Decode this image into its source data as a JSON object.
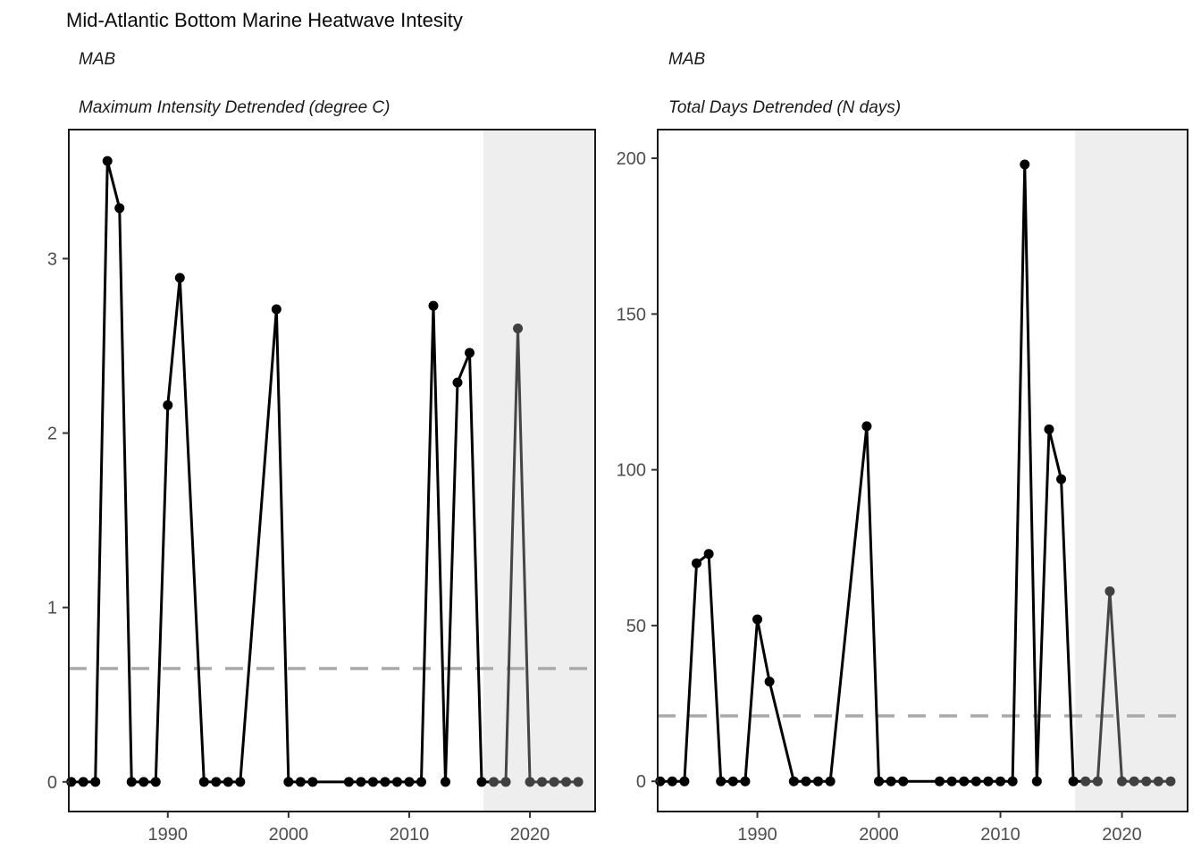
{
  "title": "Mid-Atlantic Bottom Marine Heatwave Intesity",
  "style": {
    "background": "#ffffff",
    "point_color": "#000000",
    "recent_point_color": "#404040",
    "line_color": "#000000",
    "recent_line_color": "#454545",
    "shade_color": "#eeeeee",
    "threshold_color": "#a9a9a9",
    "panel_border_color": "#1a1a1a",
    "tick_color": "#333333",
    "tick_label_color": "#4d4d4d",
    "title_color": "#0a0a0a"
  },
  "chart_data": [
    {
      "type": "line",
      "facet_label": "MAB",
      "title": "Maximum Intensity Detrended (degree C)",
      "xlabel": "",
      "ylabel": "degree C",
      "x": [
        1982,
        1983,
        1984,
        1985,
        1986,
        1987,
        1988,
        1989,
        1990,
        1991,
        1993,
        1994,
        1995,
        1996,
        1999,
        2000,
        2001,
        2002,
        2005,
        2006,
        2007,
        2008,
        2009,
        2010,
        2011,
        2012,
        2013,
        2014,
        2015,
        2016,
        2017,
        2018,
        2019,
        2020,
        2021,
        2022,
        2023,
        2024
      ],
      "values": [
        0,
        0,
        0,
        3.56,
        3.29,
        0,
        0,
        0,
        2.16,
        2.89,
        0,
        0,
        0,
        0,
        2.71,
        0,
        0,
        0,
        0,
        0,
        0,
        0,
        0,
        0,
        0,
        2.73,
        0,
        2.29,
        2.46,
        0,
        0,
        0,
        2.6,
        0,
        0,
        0,
        0,
        0
      ],
      "xlim": [
        1981.8,
        2025.4
      ],
      "ylim": [
        -0.17,
        3.74
      ],
      "xticks": [
        1990,
        2000,
        2010,
        2020
      ],
      "yticks": [
        0,
        1,
        2,
        3
      ],
      "threshold": 0.65,
      "shade_start": 2016.15,
      "recent_start": 2017,
      "grid": false,
      "legend": "none"
    },
    {
      "type": "line",
      "facet_label": "MAB",
      "title": "Total Days Detrended (N days)",
      "xlabel": "",
      "ylabel": "N days",
      "x": [
        1982,
        1983,
        1984,
        1985,
        1986,
        1987,
        1988,
        1989,
        1990,
        1991,
        1993,
        1994,
        1995,
        1996,
        1999,
        2000,
        2001,
        2002,
        2005,
        2006,
        2007,
        2008,
        2009,
        2010,
        2011,
        2012,
        2013,
        2014,
        2015,
        2016,
        2017,
        2018,
        2019,
        2020,
        2021,
        2022,
        2023,
        2024
      ],
      "values": [
        0,
        0,
        0,
        70,
        73,
        0,
        0,
        0,
        52,
        32,
        0,
        0,
        0,
        0,
        114,
        0,
        0,
        0,
        0,
        0,
        0,
        0,
        0,
        0,
        0,
        198,
        0,
        113,
        97,
        0,
        0,
        0,
        61,
        0,
        0,
        0,
        0,
        0
      ],
      "xlim": [
        1981.8,
        2025.4
      ],
      "ylim": [
        -9.7,
        209.2
      ],
      "xticks": [
        1990,
        2000,
        2010,
        2020
      ],
      "yticks": [
        0,
        50,
        100,
        150,
        200
      ],
      "threshold": 21,
      "shade_start": 2016.15,
      "recent_start": 2017,
      "grid": false,
      "legend": "none"
    }
  ]
}
